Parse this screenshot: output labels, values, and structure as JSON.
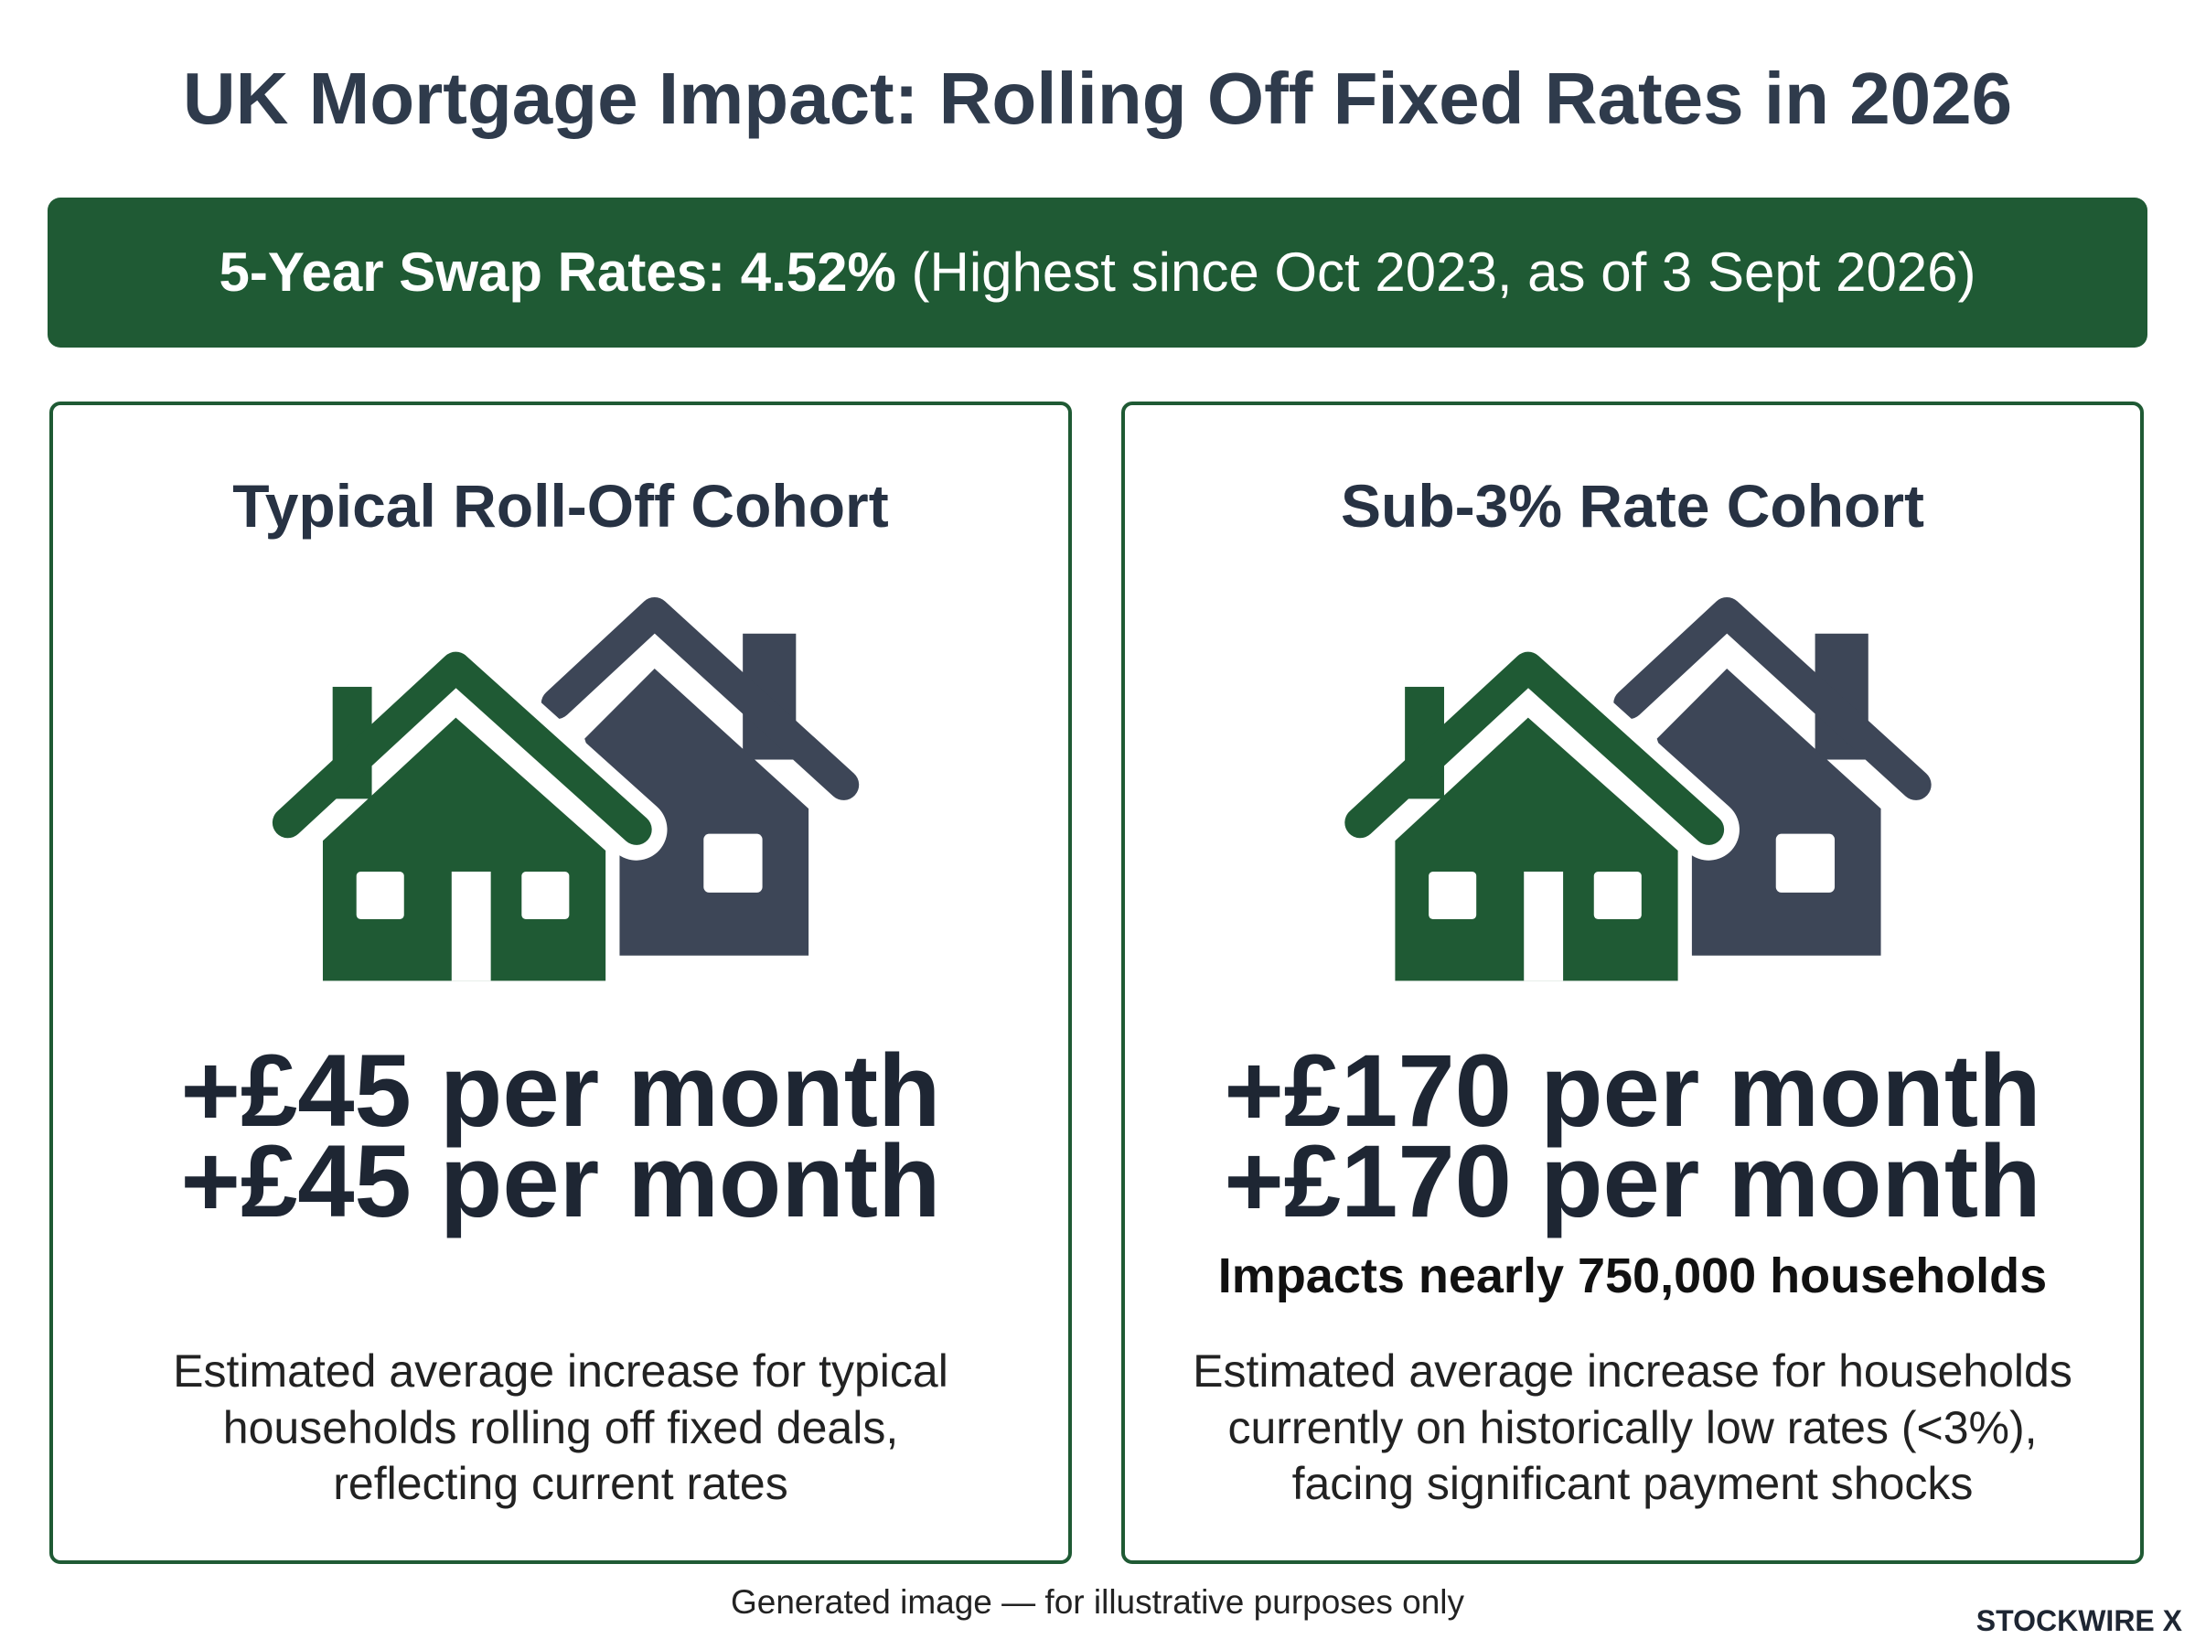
{
  "header": {
    "title": "UK Mortgage Impact: Rolling Off Fixed Rates in 2026"
  },
  "banner": {
    "highlight": "5-Year Swap Rates: 4.52%",
    "detail": "(Highest since Oct 2023, as of 3 Sept 2026)"
  },
  "cards": [
    {
      "heading": "Typical Roll-Off Cohort",
      "amount_lines": [
        "+£45 per month",
        "+£45 per month"
      ],
      "description_lines": [
        "Estimated average increase for typical",
        "households rolling off fixed deals,",
        "reflecting current rates"
      ]
    },
    {
      "heading": "Sub-3% Rate Cohort",
      "amount_lines": [
        "+£170 per month",
        "+£170 per month"
      ],
      "impact": "Impacts nearly 750,000 households",
      "description_lines": [
        "Estimated average increase for households",
        "currently on historically low rates (<3%),",
        "facing significant payment shocks"
      ]
    }
  ],
  "footer": {
    "note": "Generated image — for illustrative purposes only",
    "brand": "STOCKWIRE X"
  }
}
